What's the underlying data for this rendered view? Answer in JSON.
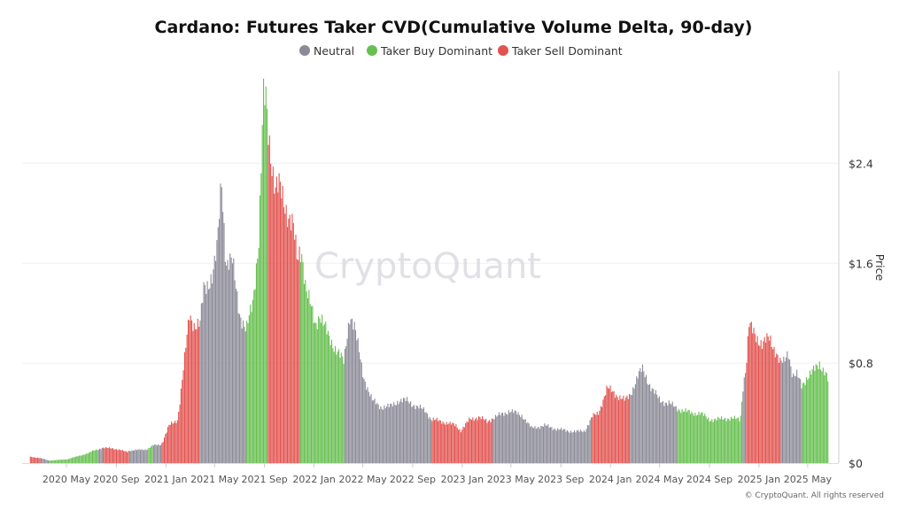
{
  "chart_data": {
    "type": "bar",
    "title": "Cardano: Futures Taker CVD(Cumulative Volume Delta, 90-day)",
    "ylabel": "Price",
    "ylim": [
      0,
      3.14
    ],
    "y_ticks": [
      "$0",
      "$0.8",
      "$1.6",
      "$2.4"
    ],
    "y_tick_values": [
      0,
      0.8,
      1.6,
      2.4
    ],
    "x_ticks": [
      "2020 May",
      "2020 Sep",
      "2021 Jan",
      "2021 May",
      "2021 Sep",
      "2022 Jan",
      "2022 May",
      "2022 Sep",
      "2023 Jan",
      "2023 May",
      "2023 Sep",
      "2024 Jan",
      "2024 May",
      "2024 Sep",
      "2025 Jan",
      "2025 May"
    ],
    "x_tick_dates": [
      "2020-05-01",
      "2020-09-01",
      "2021-01-01",
      "2021-05-01",
      "2021-09-01",
      "2022-01-01",
      "2022-05-01",
      "2022-09-01",
      "2023-01-01",
      "2023-05-01",
      "2023-09-01",
      "2024-01-01",
      "2024-05-01",
      "2024-09-01",
      "2025-01-01",
      "2025-05-01"
    ],
    "grid": true,
    "legend_position": "top-center",
    "legend": [
      {
        "key": "N",
        "name": "Neutral",
        "color": "#8b8a97"
      },
      {
        "key": "B",
        "name": "Taker Buy Dominant",
        "color": "#66bf4f"
      },
      {
        "key": "S",
        "name": "Taker Sell Dominant",
        "color": "#e2534f"
      }
    ],
    "points": [
      [
        "2020-02-01",
        0.05,
        "S"
      ],
      [
        "2020-02-26",
        0.04,
        "N"
      ],
      [
        "2020-03-18",
        0.02,
        "B"
      ],
      [
        "2020-05-01",
        0.03,
        "B"
      ],
      [
        "2020-06-24",
        0.08,
        "B"
      ],
      [
        "2020-07-05",
        0.1,
        "B"
      ],
      [
        "2020-07-16",
        0.11,
        "N"
      ],
      [
        "2020-07-27",
        0.12,
        "S"
      ],
      [
        "2020-08-20",
        0.12,
        "S"
      ],
      [
        "2020-09-26",
        0.09,
        "S"
      ],
      [
        "2020-10-01",
        0.1,
        "N"
      ],
      [
        "2020-11-14",
        0.11,
        "B"
      ],
      [
        "2020-11-29",
        0.14,
        "N"
      ],
      [
        "2020-12-20",
        0.15,
        "S"
      ],
      [
        "2021-01-08",
        0.3,
        "S"
      ],
      [
        "2021-01-29",
        0.35,
        "S"
      ],
      [
        "2021-02-14",
        0.8,
        "S"
      ],
      [
        "2021-02-27",
        1.2,
        "S"
      ],
      [
        "2021-03-12",
        1.1,
        "S"
      ],
      [
        "2021-03-25",
        1.1,
        "N"
      ],
      [
        "2021-04-03",
        1.4,
        "N"
      ],
      [
        "2021-04-25",
        1.5,
        "N"
      ],
      [
        "2021-05-06",
        1.7,
        "N"
      ],
      [
        "2021-05-17",
        2.3,
        "N"
      ],
      [
        "2021-05-28",
        1.6,
        "N"
      ],
      [
        "2021-06-13",
        1.6,
        "N"
      ],
      [
        "2021-07-01",
        1.2,
        "N"
      ],
      [
        "2021-07-11",
        1.1,
        "N"
      ],
      [
        "2021-07-17",
        1.05,
        "B"
      ],
      [
        "2021-08-02",
        1.3,
        "B"
      ],
      [
        "2021-08-17",
        1.8,
        "B"
      ],
      [
        "2021-08-28",
        2.9,
        "B"
      ],
      [
        "2021-09-04",
        2.9,
        "B"
      ],
      [
        "2021-09-08",
        2.7,
        "S"
      ],
      [
        "2021-09-15",
        2.5,
        "S"
      ],
      [
        "2021-09-26",
        2.2,
        "S"
      ],
      [
        "2021-10-06",
        2.2,
        "S"
      ],
      [
        "2021-10-17",
        2.1,
        "S"
      ],
      [
        "2021-11-09",
        1.9,
        "S"
      ],
      [
        "2021-11-20",
        1.6,
        "S"
      ],
      [
        "2021-11-26",
        1.7,
        "B"
      ],
      [
        "2021-12-01",
        1.7,
        "B"
      ],
      [
        "2021-12-11",
        1.4,
        "B"
      ],
      [
        "2022-01-03",
        1.1,
        "B"
      ],
      [
        "2022-01-14",
        1.2,
        "B"
      ],
      [
        "2022-02-05",
        1.0,
        "B"
      ],
      [
        "2022-02-27",
        0.9,
        "B"
      ],
      [
        "2022-03-14",
        0.8,
        "B"
      ],
      [
        "2022-03-16",
        0.85,
        "N"
      ],
      [
        "2022-03-29",
        1.2,
        "N"
      ],
      [
        "2022-04-09",
        1.1,
        "N"
      ],
      [
        "2022-05-01",
        0.7,
        "N"
      ],
      [
        "2022-05-23",
        0.5,
        "N"
      ],
      [
        "2022-06-14",
        0.45,
        "N"
      ],
      [
        "2022-07-05",
        0.45,
        "N"
      ],
      [
        "2022-07-27",
        0.5,
        "N"
      ],
      [
        "2022-08-18",
        0.5,
        "N"
      ],
      [
        "2022-09-10",
        0.45,
        "N"
      ],
      [
        "2022-10-01",
        0.42,
        "N"
      ],
      [
        "2022-10-16",
        0.35,
        "S"
      ],
      [
        "2022-11-14",
        0.33,
        "S"
      ],
      [
        "2022-12-16",
        0.3,
        "S"
      ],
      [
        "2022-12-27",
        0.26,
        "S"
      ],
      [
        "2023-01-19",
        0.35,
        "S"
      ],
      [
        "2023-02-10",
        0.37,
        "S"
      ],
      [
        "2023-03-02",
        0.33,
        "S"
      ],
      [
        "2023-03-15",
        0.36,
        "N"
      ],
      [
        "2023-04-15",
        0.4,
        "N"
      ],
      [
        "2023-04-26",
        0.42,
        "N"
      ],
      [
        "2023-05-28",
        0.38,
        "N"
      ],
      [
        "2023-06-19",
        0.28,
        "N"
      ],
      [
        "2023-07-22",
        0.3,
        "N"
      ],
      [
        "2023-08-24",
        0.27,
        "N"
      ],
      [
        "2023-10-07",
        0.25,
        "N"
      ],
      [
        "2023-10-29",
        0.26,
        "N"
      ],
      [
        "2023-11-16",
        0.37,
        "S"
      ],
      [
        "2023-12-01",
        0.4,
        "S"
      ],
      [
        "2023-12-23",
        0.6,
        "S"
      ],
      [
        "2024-01-14",
        0.55,
        "S"
      ],
      [
        "2024-02-05",
        0.5,
        "S"
      ],
      [
        "2024-02-18",
        0.55,
        "N"
      ],
      [
        "2024-03-08",
        0.7,
        "N"
      ],
      [
        "2024-03-19",
        0.75,
        "N"
      ],
      [
        "2024-04-10",
        0.6,
        "N"
      ],
      [
        "2024-05-01",
        0.5,
        "N"
      ],
      [
        "2024-05-23",
        0.48,
        "N"
      ],
      [
        "2024-06-10",
        0.44,
        "B"
      ],
      [
        "2024-07-17",
        0.4,
        "B"
      ],
      [
        "2024-08-08",
        0.4,
        "B"
      ],
      [
        "2024-08-30",
        0.35,
        "B"
      ],
      [
        "2024-09-21",
        0.35,
        "B"
      ],
      [
        "2024-10-13",
        0.36,
        "B"
      ],
      [
        "2024-11-15",
        0.35,
        "B"
      ],
      [
        "2024-11-21",
        0.6,
        "N"
      ],
      [
        "2024-11-30",
        0.8,
        "S"
      ],
      [
        "2024-12-06",
        1.1,
        "S"
      ],
      [
        "2024-12-17",
        1.05,
        "S"
      ],
      [
        "2025-01-08",
        0.95,
        "S"
      ],
      [
        "2025-01-26",
        1.0,
        "S"
      ],
      [
        "2025-02-10",
        0.9,
        "S"
      ],
      [
        "2025-02-21",
        0.8,
        "N"
      ],
      [
        "2025-03-02",
        0.8,
        "N"
      ],
      [
        "2025-03-13",
        0.9,
        "N"
      ],
      [
        "2025-03-24",
        0.7,
        "N"
      ],
      [
        "2025-04-04",
        0.7,
        "N"
      ],
      [
        "2025-04-15",
        0.62,
        "B"
      ],
      [
        "2025-04-26",
        0.68,
        "B"
      ],
      [
        "2025-05-18",
        0.75,
        "B"
      ],
      [
        "2025-05-29",
        0.8,
        "B"
      ],
      [
        "2025-06-13",
        0.72,
        "B"
      ],
      [
        "2025-06-20",
        0.65,
        "B"
      ]
    ]
  },
  "watermark": "CryptoQuant",
  "copyright": "© CryptoQuant. All rights reserved"
}
